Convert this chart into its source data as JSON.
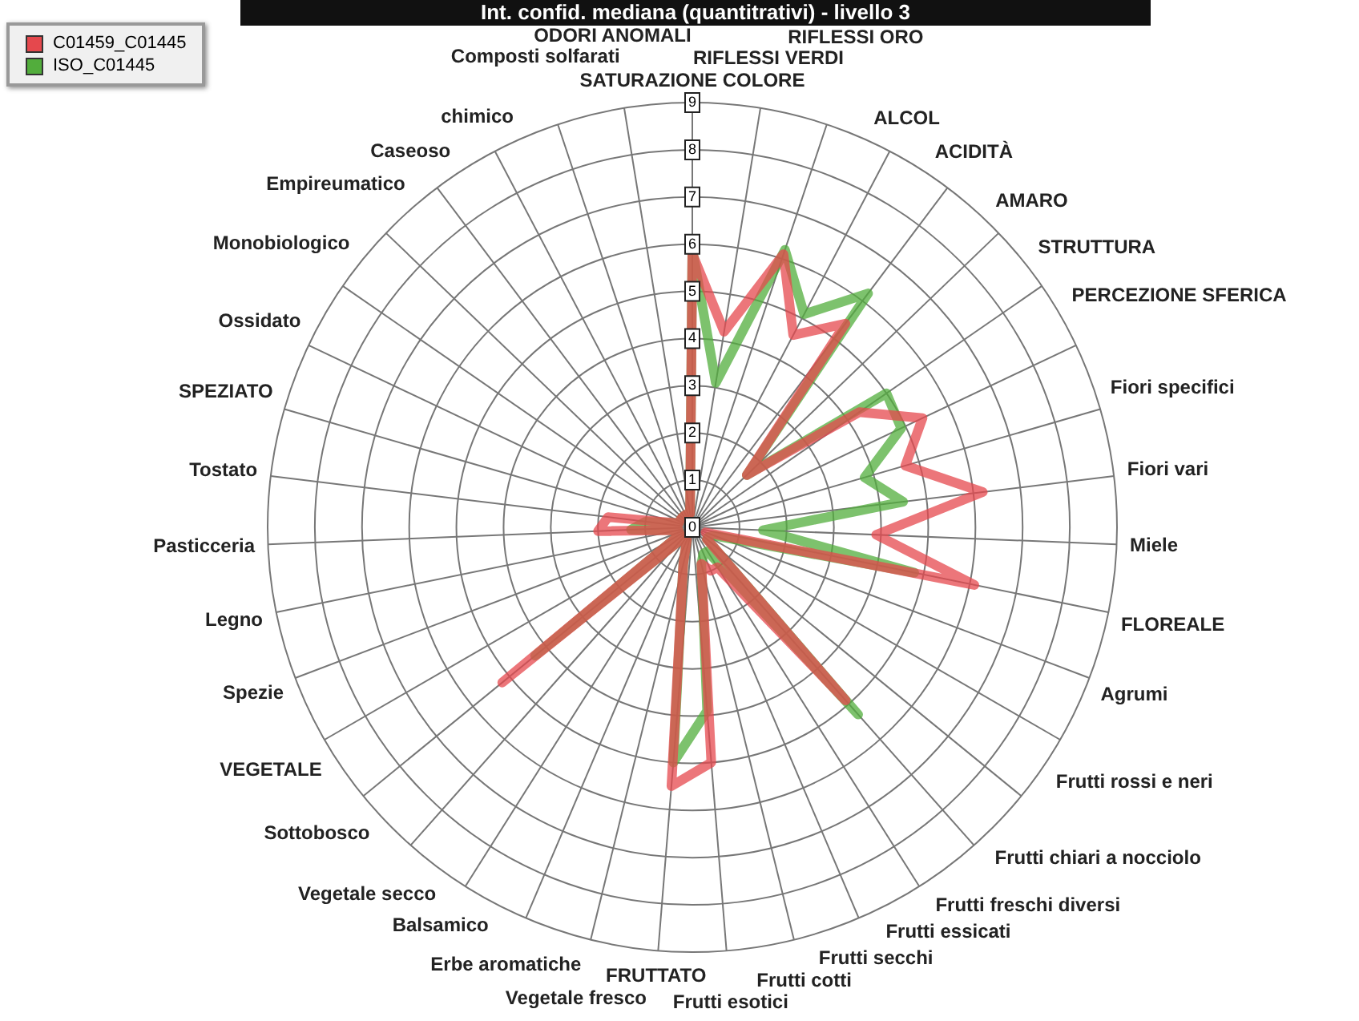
{
  "chart_data": {
    "type": "radar",
    "title": "Int. confid. mediana (quantitrativi) - livello 3",
    "categories": [
      "SATURAZIONE COLORE",
      "RIFLESSI VERDI",
      "RIFLESSI ORO",
      "ALCOL",
      "ACIDITÀ",
      "AMARO",
      "STRUTTURA",
      "PERCEZIONE SFERICA",
      "Fiori specifici",
      "Fiori vari",
      "Miele",
      "FLOREALE",
      "Agrumi",
      "Frutti rossi e neri",
      "Frutti chiari a nocciolo",
      "Frutti freschi diversi",
      "Frutti essicati",
      "Frutti secchi",
      "Frutti cotti",
      "Frutti esotici",
      "FRUTTATO",
      "Vegetale fresco",
      "Erbe aromatiche",
      "Balsamico",
      "Vegetale secco",
      "Sottobosco",
      "VEGETALE",
      "Spezie",
      "Legno",
      "Pasticceria",
      "Tostato",
      "SPEZIATO",
      "Ossidato",
      "Monobiologico",
      "Empireumatico",
      "Caseoso",
      "chimico",
      "Composti solfarati",
      "ODORI ANOMALI"
    ],
    "series": [
      {
        "name": "C01459_C01445",
        "color": "#e5484d",
        "values": [
          5.8,
          4.2,
          6.1,
          4.6,
          5.4,
          1.6,
          4.3,
          5.4,
          4.7,
          6.2,
          3.9,
          6.1,
          0.3,
          0.4,
          0.4,
          4.9,
          1.0,
          1.0,
          0.8,
          5.0,
          5.5,
          0.8,
          0.3,
          0.3,
          0.3,
          5.2,
          0.3,
          0.3,
          0.3,
          2.0,
          1.8,
          0.3,
          0.3,
          0.3,
          0.3,
          0.3,
          0.3,
          0.3,
          0.3
        ]
      },
      {
        "name": "ISO_C01445",
        "color": "#52ad3c",
        "values": [
          5.9,
          3.1,
          6.2,
          5.1,
          6.2,
          1.6,
          5.0,
          4.9,
          3.8,
          4.5,
          1.5,
          4.8,
          0.5,
          0.4,
          0.4,
          5.3,
          0.6,
          0.6,
          0.8,
          3.9,
          5.0,
          0.8,
          0.3,
          0.3,
          0.3,
          4.3,
          0.3,
          0.3,
          0.3,
          1.3,
          1.0,
          0.3,
          0.3,
          0.3,
          0.3,
          0.3,
          0.3,
          0.3,
          0.3
        ]
      }
    ],
    "ylim": [
      0,
      9
    ],
    "yticks": [
      0,
      1,
      2,
      3,
      4,
      5,
      6,
      7,
      8,
      9
    ],
    "grid": true,
    "legend": "top left",
    "marker": "none",
    "line_style": "solid"
  }
}
